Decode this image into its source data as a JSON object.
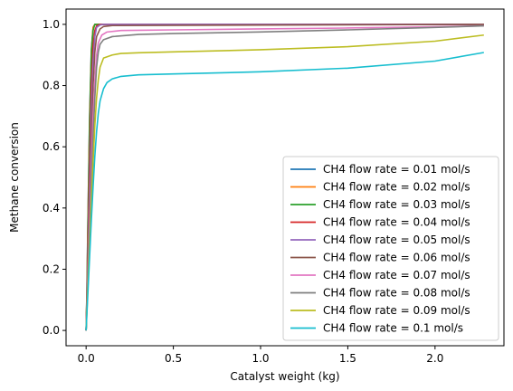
{
  "chart_data": {
    "type": "line",
    "title": "",
    "xlabel": "Catalyst weight (kg)",
    "ylabel": "Methane conversion",
    "xlim": [
      -0.115,
      2.395
    ],
    "ylim": [
      -0.05,
      1.05
    ],
    "xticks": [
      0.0,
      0.5,
      1.0,
      1.5,
      2.0
    ],
    "xtick_labels": [
      "0.0",
      "0.5",
      "1.0",
      "1.5",
      "2.0"
    ],
    "yticks": [
      0.0,
      0.2,
      0.4,
      0.6,
      0.8,
      1.0
    ],
    "ytick_labels": [
      "0.0",
      "0.2",
      "0.4",
      "0.6",
      "0.8",
      "1.0"
    ],
    "grid": false,
    "legend_position": "lower-right",
    "series": [
      {
        "name": "CH4 flow rate = 0.01 mol/s",
        "color": "#1f77b4",
        "x": [
          0,
          0.005,
          0.01,
          0.02,
          0.03,
          0.04,
          0.05,
          0.06,
          2.28
        ],
        "y": [
          0,
          0.15,
          0.35,
          0.7,
          0.92,
          0.99,
          1.0,
          1.0,
          1.0
        ]
      },
      {
        "name": "CH4 flow rate = 0.02 mol/s",
        "color": "#ff7f0e",
        "x": [
          0,
          0.005,
          0.01,
          0.02,
          0.03,
          0.04,
          0.05,
          0.06,
          2.28
        ],
        "y": [
          0,
          0.14,
          0.33,
          0.68,
          0.91,
          0.99,
          1.0,
          1.0,
          1.0
        ]
      },
      {
        "name": "CH4 flow rate = 0.03 mol/s",
        "color": "#2ca02c",
        "x": [
          0,
          0.005,
          0.01,
          0.02,
          0.03,
          0.04,
          0.05,
          0.06,
          2.28
        ],
        "y": [
          0,
          0.13,
          0.31,
          0.66,
          0.9,
          0.98,
          1.0,
          1.0,
          1.0
        ]
      },
      {
        "name": "CH4 flow rate = 0.04 mol/s",
        "color": "#d62728",
        "x": [
          0,
          0.005,
          0.01,
          0.02,
          0.03,
          0.04,
          0.05,
          0.06,
          0.08,
          0.1,
          2.28
        ],
        "y": [
          0,
          0.12,
          0.26,
          0.55,
          0.8,
          0.93,
          0.98,
          0.995,
          1.0,
          1.0,
          1.0
        ]
      },
      {
        "name": "CH4 flow rate = 0.05 mol/s",
        "color": "#9467bd",
        "x": [
          0,
          0.005,
          0.01,
          0.02,
          0.03,
          0.04,
          0.05,
          0.06,
          0.08,
          0.1,
          2.28
        ],
        "y": [
          0,
          0.1,
          0.22,
          0.48,
          0.72,
          0.88,
          0.96,
          0.99,
          0.998,
          1.0,
          1.0
        ]
      },
      {
        "name": "CH4 flow rate = 0.06 mol/s",
        "color": "#8c564b",
        "x": [
          0,
          0.01,
          0.02,
          0.03,
          0.04,
          0.05,
          0.06,
          0.08,
          0.1,
          0.15,
          2.28
        ],
        "y": [
          0,
          0.2,
          0.42,
          0.63,
          0.8,
          0.91,
          0.96,
          0.985,
          0.993,
          0.996,
          1.0
        ]
      },
      {
        "name": "CH4 flow rate = 0.07 mol/s",
        "color": "#e377c2",
        "x": [
          0,
          0.01,
          0.02,
          0.03,
          0.04,
          0.05,
          0.06,
          0.07,
          0.09,
          0.12,
          0.2,
          0.5,
          1.0,
          1.5,
          2.0,
          2.28
        ],
        "y": [
          0,
          0.18,
          0.36,
          0.54,
          0.7,
          0.82,
          0.9,
          0.94,
          0.965,
          0.975,
          0.98,
          0.982,
          0.985,
          0.988,
          0.992,
          0.995
        ]
      },
      {
        "name": "CH4 flow rate = 0.08 mol/s",
        "color": "#7f7f7f",
        "x": [
          0,
          0.01,
          0.02,
          0.03,
          0.04,
          0.05,
          0.06,
          0.07,
          0.08,
          0.1,
          0.15,
          0.3,
          0.5,
          1.0,
          1.5,
          2.0,
          2.28
        ],
        "y": [
          0,
          0.16,
          0.32,
          0.48,
          0.63,
          0.76,
          0.86,
          0.91,
          0.935,
          0.95,
          0.96,
          0.967,
          0.97,
          0.975,
          0.982,
          0.99,
          0.995
        ]
      },
      {
        "name": "CH4 flow rate = 0.09 mol/s",
        "color": "#bcbd22",
        "x": [
          0,
          0.01,
          0.02,
          0.03,
          0.04,
          0.05,
          0.06,
          0.07,
          0.08,
          0.1,
          0.15,
          0.2,
          0.3,
          0.5,
          1.0,
          1.5,
          2.0,
          2.28
        ],
        "y": [
          0,
          0.14,
          0.28,
          0.42,
          0.55,
          0.67,
          0.76,
          0.82,
          0.86,
          0.89,
          0.9,
          0.905,
          0.907,
          0.91,
          0.917,
          0.927,
          0.945,
          0.965
        ]
      },
      {
        "name": "CH4 flow rate = 0.1 mol/s",
        "color": "#17becf",
        "x": [
          0,
          0.01,
          0.02,
          0.03,
          0.04,
          0.05,
          0.06,
          0.07,
          0.08,
          0.1,
          0.12,
          0.15,
          0.2,
          0.3,
          0.5,
          1.0,
          1.5,
          2.0,
          2.28
        ],
        "y": [
          0,
          0.12,
          0.24,
          0.36,
          0.47,
          0.57,
          0.65,
          0.71,
          0.75,
          0.79,
          0.81,
          0.822,
          0.83,
          0.835,
          0.838,
          0.845,
          0.857,
          0.88,
          0.908
        ]
      }
    ]
  }
}
